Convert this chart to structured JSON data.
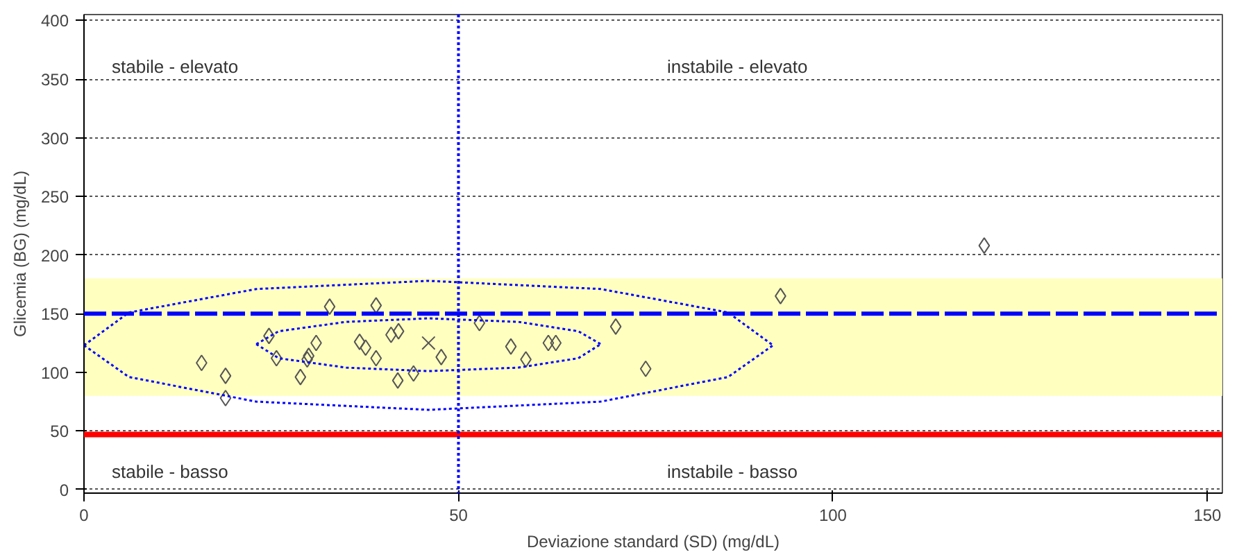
{
  "chart_data": {
    "type": "scatter",
    "xlabel": "Deviazione standard (SD) (mg/dL)",
    "ylabel": "Glicemia (BG) (mg/dL)",
    "xlim": [
      0,
      152
    ],
    "ylim": [
      -3,
      405
    ],
    "xticks": [
      0,
      50,
      100,
      150
    ],
    "yticks": [
      0,
      50,
      100,
      150,
      200,
      250,
      300,
      350,
      400
    ],
    "grid": "y",
    "series": [
      {
        "marker": "diamond",
        "color": "#555555",
        "x": [
          15.7,
          18.9,
          18.9,
          24.7,
          25.7,
          28.9,
          29.8,
          30,
          31,
          32.8,
          36.8,
          37.6,
          39,
          39,
          41,
          42,
          41.9,
          44,
          47.7,
          52.8,
          57,
          59,
          62,
          63,
          71,
          75,
          93,
          120.2
        ],
        "values": [
          108,
          97,
          78,
          131,
          112,
          96,
          111,
          114,
          125,
          156,
          126,
          121,
          112,
          157,
          132,
          135,
          93,
          99,
          113,
          142,
          122,
          111,
          125,
          125,
          139,
          103,
          165,
          208
        ]
      },
      {
        "marker": "cross",
        "color": "#555555",
        "x": [
          46
        ],
        "values": [
          125
        ]
      },
      {
        "type": "line",
        "line_style": "dotted",
        "color": "#0000ff",
        "x": [
          0,
          6,
          23,
          46,
          69,
          86,
          92
        ],
        "values": [
          123,
          151,
          171,
          178,
          171,
          151,
          123
        ]
      },
      {
        "type": "line",
        "line_style": "dotted",
        "color": "#0000ff",
        "x": [
          0,
          6,
          23,
          46,
          69,
          86,
          92
        ],
        "values": [
          123,
          96,
          75,
          68,
          75,
          96,
          123
        ]
      },
      {
        "type": "line",
        "line_style": "dotted",
        "color": "#0000ff",
        "x": [
          23,
          26,
          35,
          46,
          58,
          66,
          69
        ],
        "values": [
          124,
          135,
          143,
          146,
          143,
          135,
          124
        ]
      },
      {
        "type": "line",
        "line_style": "dotted",
        "color": "#0000ff",
        "x": [
          23,
          26,
          35,
          46,
          58,
          66,
          69
        ],
        "values": [
          124,
          112,
          104,
          101,
          104,
          112,
          124
        ]
      }
    ],
    "ref_lines": [
      {
        "axis": "y",
        "value": 47,
        "color": "#ff0000",
        "line_style": "solid"
      },
      {
        "axis": "x",
        "value": 50,
        "color": "#0000ff",
        "line_style": "dotted"
      },
      {
        "axis": "y",
        "value": 150,
        "color": "#0000ff",
        "line_style": "dashed"
      }
    ],
    "bands": [
      {
        "axis": "y",
        "from": 80,
        "to": 180,
        "color": "#ffffc0"
      }
    ],
    "annotations": [
      "stabile - elevato",
      "instabile - elevato",
      "stabile - basso",
      "instabile - basso"
    ]
  }
}
